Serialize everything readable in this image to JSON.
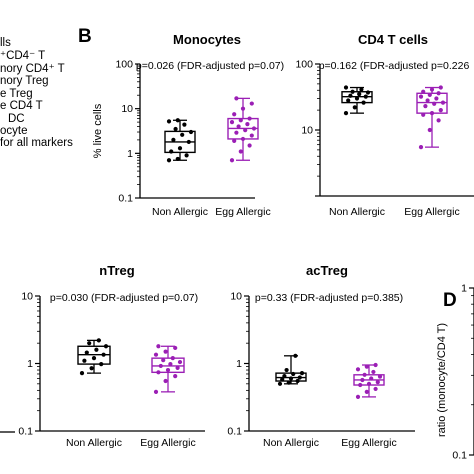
{
  "legend_fragment": [
    "lls",
    "⁺CD4⁻ T",
    "nory CD4⁺ T",
    "nory Treg",
    "e Treg",
    "e CD4 T",
    "DC",
    "ocyte",
    "for all markers"
  ],
  "panel_labels": {
    "B": "B",
    "D": "D"
  },
  "y_axis_label_B": "% live cells",
  "y_axis_label_D": "ratio  (monocyte/CD4 T)",
  "colors": {
    "non_allergic": "#000000",
    "egg_allergic": "#9b1fb5"
  },
  "chart_data": [
    {
      "type": "box",
      "title": "Monocytes",
      "annotation": "p=0.026 (FDR-adjusted p=0.07)",
      "ylabel": "% live cells",
      "yscale": "log",
      "ylim": [
        0.1,
        100
      ],
      "yticks": [
        "100",
        "10",
        "1",
        "0.1"
      ],
      "categories": [
        "Non Allergic",
        "Egg Allergic"
      ],
      "series": [
        {
          "min": 0.7,
          "q1": 1.05,
          "median": 1.8,
          "q3": 3.1,
          "max": 5.5,
          "points": [
            0.7,
            0.75,
            0.9,
            1.1,
            1.3,
            1.8,
            2.0,
            2.6,
            3.0,
            3.5,
            4.4,
            5.2,
            5.5
          ]
        },
        {
          "min": 0.7,
          "q1": 2.1,
          "median": 3.6,
          "q3": 6.0,
          "max": 17,
          "points": [
            0.7,
            1.1,
            1.5,
            1.9,
            2.1,
            2.5,
            2.9,
            3.3,
            3.6,
            4.0,
            4.5,
            5.0,
            5.5,
            6.0,
            7.5,
            10,
            13,
            17
          ]
        }
      ]
    },
    {
      "type": "box",
      "title": "CD4 T cells",
      "annotation": "p=0.162 (FDR-adjusted p=0.226",
      "ylabel": "",
      "yscale": "log",
      "ylim": [
        1,
        100
      ],
      "yticks": [
        "100",
        "10"
      ],
      "categories": [
        "Non Allergic",
        "Egg Allergic"
      ],
      "series": [
        {
          "min": 18,
          "q1": 26,
          "median": 32,
          "q3": 38,
          "max": 44,
          "points": [
            18,
            22,
            26,
            28,
            30,
            32,
            33,
            35,
            37,
            38,
            41,
            44
          ]
        },
        {
          "min": 5.5,
          "q1": 18,
          "median": 26,
          "q3": 36,
          "max": 44,
          "points": [
            5.5,
            10,
            14,
            17,
            18,
            20,
            23,
            25,
            26,
            28,
            30,
            32,
            34,
            36,
            38,
            41,
            44
          ]
        }
      ]
    },
    {
      "type": "box",
      "title": "nTreg",
      "annotation": "p=0.030 (FDR-adjusted p=0.07)",
      "ylabel": "",
      "yscale": "log",
      "ylim": [
        0.1,
        10
      ],
      "yticks": [
        "10",
        "1",
        "0.1"
      ],
      "categories": [
        "Non Allergic",
        "Egg Allergic"
      ],
      "series": [
        {
          "min": 0.72,
          "q1": 0.98,
          "median": 1.35,
          "q3": 1.8,
          "max": 2.2,
          "points": [
            0.72,
            0.85,
            0.98,
            1.1,
            1.2,
            1.35,
            1.45,
            1.6,
            1.8,
            2.0,
            2.2
          ]
        },
        {
          "min": 0.38,
          "q1": 0.74,
          "median": 0.92,
          "q3": 1.2,
          "max": 1.8,
          "points": [
            0.38,
            0.55,
            0.65,
            0.74,
            0.8,
            0.86,
            0.92,
            0.98,
            1.05,
            1.12,
            1.2,
            1.35,
            1.5,
            1.7,
            1.8
          ]
        }
      ]
    },
    {
      "type": "box",
      "title": "acTreg",
      "annotation": "p=0.33 (FDR-adjusted p=0.385)",
      "ylabel": "",
      "yscale": "log",
      "ylim": [
        0.1,
        10
      ],
      "yticks": [
        "10",
        "1",
        "0.1"
      ],
      "categories": [
        "Non Allergic",
        "Egg Allergic"
      ],
      "series": [
        {
          "min": 0.5,
          "q1": 0.55,
          "median": 0.62,
          "q3": 0.72,
          "max": 1.3,
          "points": [
            0.5,
            0.52,
            0.55,
            0.58,
            0.6,
            0.62,
            0.65,
            0.7,
            0.72,
            0.8,
            1.3
          ]
        },
        {
          "min": 0.32,
          "q1": 0.48,
          "median": 0.57,
          "q3": 0.68,
          "max": 0.95,
          "points": [
            0.32,
            0.38,
            0.42,
            0.48,
            0.5,
            0.53,
            0.57,
            0.6,
            0.64,
            0.68,
            0.75,
            0.82,
            0.9,
            0.95
          ]
        }
      ]
    },
    {
      "type": "box",
      "title": "",
      "annotation": "",
      "ylabel": "ratio  (monocyte/CD4 T)",
      "yscale": "log",
      "yticks": [
        "1",
        "0.1"
      ],
      "categories": [],
      "series": []
    }
  ]
}
